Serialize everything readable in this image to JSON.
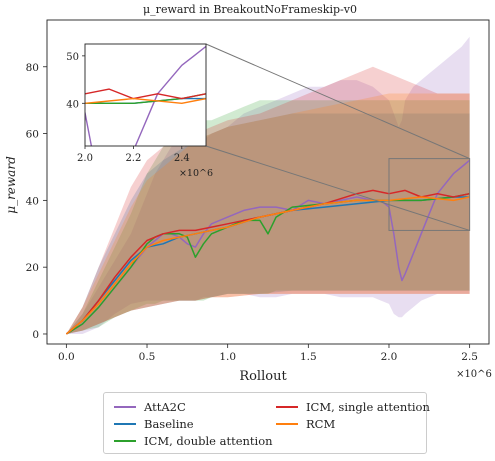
{
  "chart_data": {
    "type": "line",
    "title": "μ_reward in BreakoutNoFrameskip-v0",
    "xlabel": "Rollout",
    "ylabel": "μ_reward",
    "x_multiplier_label": "×10^6",
    "xlim": [
      -0.12,
      2.62
    ],
    "ylim": [
      -3,
      94
    ],
    "x_ticks": [
      0.0,
      0.5,
      1.0,
      1.5,
      2.0,
      2.5
    ],
    "x_tick_labels": [
      "0.0",
      "0.5",
      "1.0",
      "1.5",
      "2.0",
      "2.5"
    ],
    "y_ticks": [
      0,
      20,
      40,
      60,
      80
    ],
    "y_tick_labels": [
      "0",
      "20",
      "40",
      "60",
      "80"
    ],
    "grid": false,
    "legend_position": "below",
    "series": [
      {
        "name": "AttA2C",
        "color": "#9467bd",
        "x": [
          0,
          0.1,
          0.2,
          0.3,
          0.4,
          0.5,
          0.55,
          0.6,
          0.65,
          0.7,
          0.75,
          0.8,
          0.85,
          0.9,
          1.0,
          1.1,
          1.2,
          1.3,
          1.4,
          1.5,
          1.6,
          1.7,
          1.8,
          1.9,
          1.95,
          2.0,
          2.03,
          2.06,
          2.08,
          2.1,
          2.15,
          2.2,
          2.25,
          2.3,
          2.35,
          2.4,
          2.45,
          2.5
        ],
        "y": [
          0,
          3,
          8,
          14,
          20,
          26,
          28,
          30,
          30,
          29,
          27,
          26,
          30,
          33,
          35,
          37,
          38,
          38,
          37,
          40,
          39,
          40,
          41,
          40,
          40,
          38,
          30,
          20,
          16,
          18,
          24,
          30,
          36,
          42,
          45,
          48,
          50,
          52
        ],
        "upper": [
          0,
          6,
          14,
          22,
          30,
          42,
          48,
          52,
          56,
          58,
          60,
          58,
          58,
          60,
          62,
          66,
          68,
          70,
          72,
          74,
          74,
          76,
          76,
          74,
          72,
          70,
          66,
          62,
          64,
          70,
          74,
          76,
          78,
          80,
          82,
          84,
          86,
          89
        ],
        "lower": [
          0,
          0,
          2,
          6,
          9,
          10,
          10,
          10,
          10,
          10,
          10,
          10,
          11,
          11,
          12,
          12,
          11,
          11,
          12,
          12,
          12,
          11,
          11,
          11,
          10,
          9,
          6,
          5,
          5,
          6,
          8,
          10,
          11,
          12,
          12,
          12,
          12,
          12
        ]
      },
      {
        "name": "Baseline",
        "color": "#1f77b4",
        "x": [
          0,
          0.1,
          0.2,
          0.3,
          0.4,
          0.5,
          0.6,
          0.7,
          0.8,
          0.9,
          1.0,
          1.2,
          1.4,
          1.6,
          1.8,
          2.0,
          2.2,
          2.4,
          2.5
        ],
        "y": [
          0,
          4,
          10,
          16,
          22,
          26,
          27,
          29,
          30,
          31,
          32,
          35,
          37,
          38,
          39,
          40,
          40,
          41,
          41
        ],
        "upper": [
          0,
          8,
          20,
          30,
          40,
          48,
          52,
          55,
          58,
          60,
          62,
          64,
          66,
          66,
          66,
          66,
          66,
          66,
          66
        ],
        "lower": [
          0,
          1,
          3,
          5,
          7,
          8,
          9,
          10,
          10,
          11,
          12,
          12,
          13,
          13,
          13,
          13,
          13,
          13,
          13
        ]
      },
      {
        "name": "ICM, double attention",
        "color": "#2ca02c",
        "x": [
          0,
          0.1,
          0.2,
          0.3,
          0.4,
          0.5,
          0.55,
          0.6,
          0.7,
          0.75,
          0.8,
          0.85,
          0.9,
          1.0,
          1.1,
          1.2,
          1.25,
          1.3,
          1.4,
          1.6,
          1.8,
          2.0,
          2.2,
          2.4,
          2.5
        ],
        "y": [
          0,
          3,
          8,
          14,
          20,
          27,
          29,
          30,
          30,
          29,
          23,
          27,
          30,
          32,
          34,
          34,
          30,
          35,
          38,
          39,
          40,
          40,
          40,
          41,
          42
        ],
        "upper": [
          0,
          6,
          16,
          26,
          36,
          48,
          52,
          56,
          60,
          62,
          64,
          64,
          64,
          66,
          68,
          70,
          70,
          70,
          70,
          70,
          70,
          70,
          70,
          70,
          70
        ],
        "lower": [
          0,
          1,
          2,
          5,
          7,
          9,
          9,
          10,
          10,
          10,
          10,
          10,
          11,
          12,
          12,
          12,
          12,
          13,
          13,
          13,
          13,
          13,
          13,
          13,
          13
        ]
      },
      {
        "name": "ICM, single attention",
        "color": "#d62728",
        "x": [
          0,
          0.1,
          0.2,
          0.3,
          0.4,
          0.5,
          0.6,
          0.7,
          0.8,
          0.9,
          1.0,
          1.2,
          1.4,
          1.6,
          1.8,
          1.9,
          2.0,
          2.1,
          2.2,
          2.3,
          2.4,
          2.5
        ],
        "y": [
          0,
          4,
          10,
          17,
          23,
          28,
          30,
          31,
          31,
          32,
          33,
          35,
          37,
          39,
          42,
          43,
          42,
          43,
          41,
          42,
          41,
          42
        ],
        "upper": [
          0,
          8,
          20,
          32,
          44,
          52,
          56,
          58,
          60,
          62,
          64,
          66,
          70,
          74,
          78,
          80,
          78,
          76,
          74,
          72,
          72,
          72
        ],
        "lower": [
          0,
          1,
          3,
          5,
          7,
          8,
          9,
          10,
          10,
          11,
          11,
          12,
          12,
          12,
          12,
          12,
          12,
          12,
          12,
          12,
          12,
          12
        ]
      },
      {
        "name": "RCM",
        "color": "#ff7f0e",
        "x": [
          0,
          0.1,
          0.2,
          0.3,
          0.4,
          0.5,
          0.6,
          0.7,
          0.8,
          0.9,
          1.0,
          1.2,
          1.4,
          1.6,
          1.8,
          2.0,
          2.2,
          2.4,
          2.5
        ],
        "y": [
          0,
          4,
          9,
          15,
          21,
          26,
          28,
          29,
          30,
          31,
          32,
          35,
          37,
          39,
          40,
          40,
          41,
          40,
          41
        ],
        "upper": [
          0,
          8,
          18,
          28,
          38,
          46,
          50,
          54,
          58,
          60,
          62,
          64,
          66,
          68,
          70,
          72,
          72,
          72,
          72
        ],
        "lower": [
          0,
          1,
          3,
          5,
          7,
          8,
          9,
          10,
          10,
          11,
          11,
          12,
          12,
          12,
          12,
          12,
          12,
          12,
          12
        ]
      }
    ],
    "inset": {
      "xlim": [
        2.0,
        2.5
      ],
      "ylim": [
        31,
        52.5
      ],
      "x_ticks": [
        2.0,
        2.2,
        2.4
      ],
      "x_tick_labels": [
        "2.0",
        "2.2",
        "2.4"
      ],
      "y_ticks": [
        40,
        50
      ],
      "y_tick_labels": [
        "40",
        "50"
      ],
      "x_multiplier_label": "×10^6"
    }
  },
  "legend": {
    "items": [
      {
        "label": "AttA2C",
        "color": "#9467bd"
      },
      {
        "label": "Baseline",
        "color": "#1f77b4"
      },
      {
        "label": "ICM, double attention",
        "color": "#2ca02c"
      },
      {
        "label": "ICM, single attention",
        "color": "#d62728"
      },
      {
        "label": "RCM",
        "color": "#ff7f0e"
      }
    ]
  }
}
